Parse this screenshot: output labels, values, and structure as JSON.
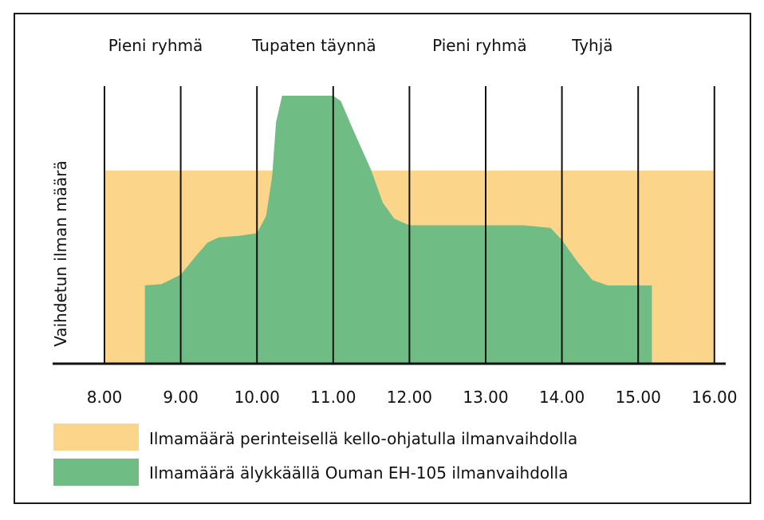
{
  "chart_data": {
    "type": "area",
    "ylabel": "Vaihdetun ilman määrä",
    "xlim": [
      8.0,
      16.0
    ],
    "ylim": [
      0,
      100
    ],
    "xticks": [
      8,
      9,
      10,
      11,
      12,
      13,
      14,
      15,
      16
    ],
    "xtick_labels": [
      "8.00",
      "9.00",
      "10.00",
      "11.00",
      "12.00",
      "13.00",
      "14.00",
      "15.00",
      "16.00"
    ],
    "grid_x": true,
    "phases": [
      {
        "label": "Pieni ryhmä",
        "x": 8.67
      },
      {
        "label": "Tupaten täynnä",
        "x": 10.75
      },
      {
        "label": "Pieni ryhmä",
        "x": 12.92
      },
      {
        "label": "Tyhjä",
        "x": 14.4
      }
    ],
    "series": [
      {
        "name": "Ilmamäärä perinteisellä kello-ohjatulla ilmanvaihdolla",
        "color": "#fbd589",
        "points": [
          [
            8.0,
            72
          ],
          [
            16.0,
            72
          ]
        ]
      },
      {
        "name": "Ilmamäärä älykkäällä Ouman EH-105 ilmanvaihdolla",
        "color": "#6fbc84",
        "points": [
          [
            8.53,
            0
          ],
          [
            8.53,
            29
          ],
          [
            8.75,
            29.5
          ],
          [
            9.0,
            33
          ],
          [
            9.2,
            40
          ],
          [
            9.35,
            45
          ],
          [
            9.5,
            47
          ],
          [
            9.75,
            47.5
          ],
          [
            10.0,
            48.5
          ],
          [
            10.12,
            55
          ],
          [
            10.2,
            70
          ],
          [
            10.25,
            90
          ],
          [
            10.33,
            100
          ],
          [
            10.5,
            100
          ],
          [
            10.85,
            100
          ],
          [
            11.0,
            100
          ],
          [
            11.1,
            98
          ],
          [
            11.25,
            88
          ],
          [
            11.5,
            72
          ],
          [
            11.65,
            60
          ],
          [
            11.8,
            54
          ],
          [
            12.0,
            51.5
          ],
          [
            12.5,
            51.5
          ],
          [
            13.0,
            51.5
          ],
          [
            13.5,
            51.5
          ],
          [
            13.85,
            50.5
          ],
          [
            14.0,
            46
          ],
          [
            14.2,
            38
          ],
          [
            14.4,
            31
          ],
          [
            14.6,
            29
          ],
          [
            15.0,
            29
          ],
          [
            15.18,
            29
          ],
          [
            15.18,
            0
          ]
        ]
      }
    ]
  },
  "legend": {
    "items": [
      {
        "label": "Ilmamäärä perinteisellä kello-ohjatulla ilmanvaihdolla",
        "color": "#fbd589"
      },
      {
        "label": "Ilmamäärä älykkäällä Ouman EH-105 ilmanvaihdolla",
        "color": "#6fbc84"
      }
    ]
  }
}
